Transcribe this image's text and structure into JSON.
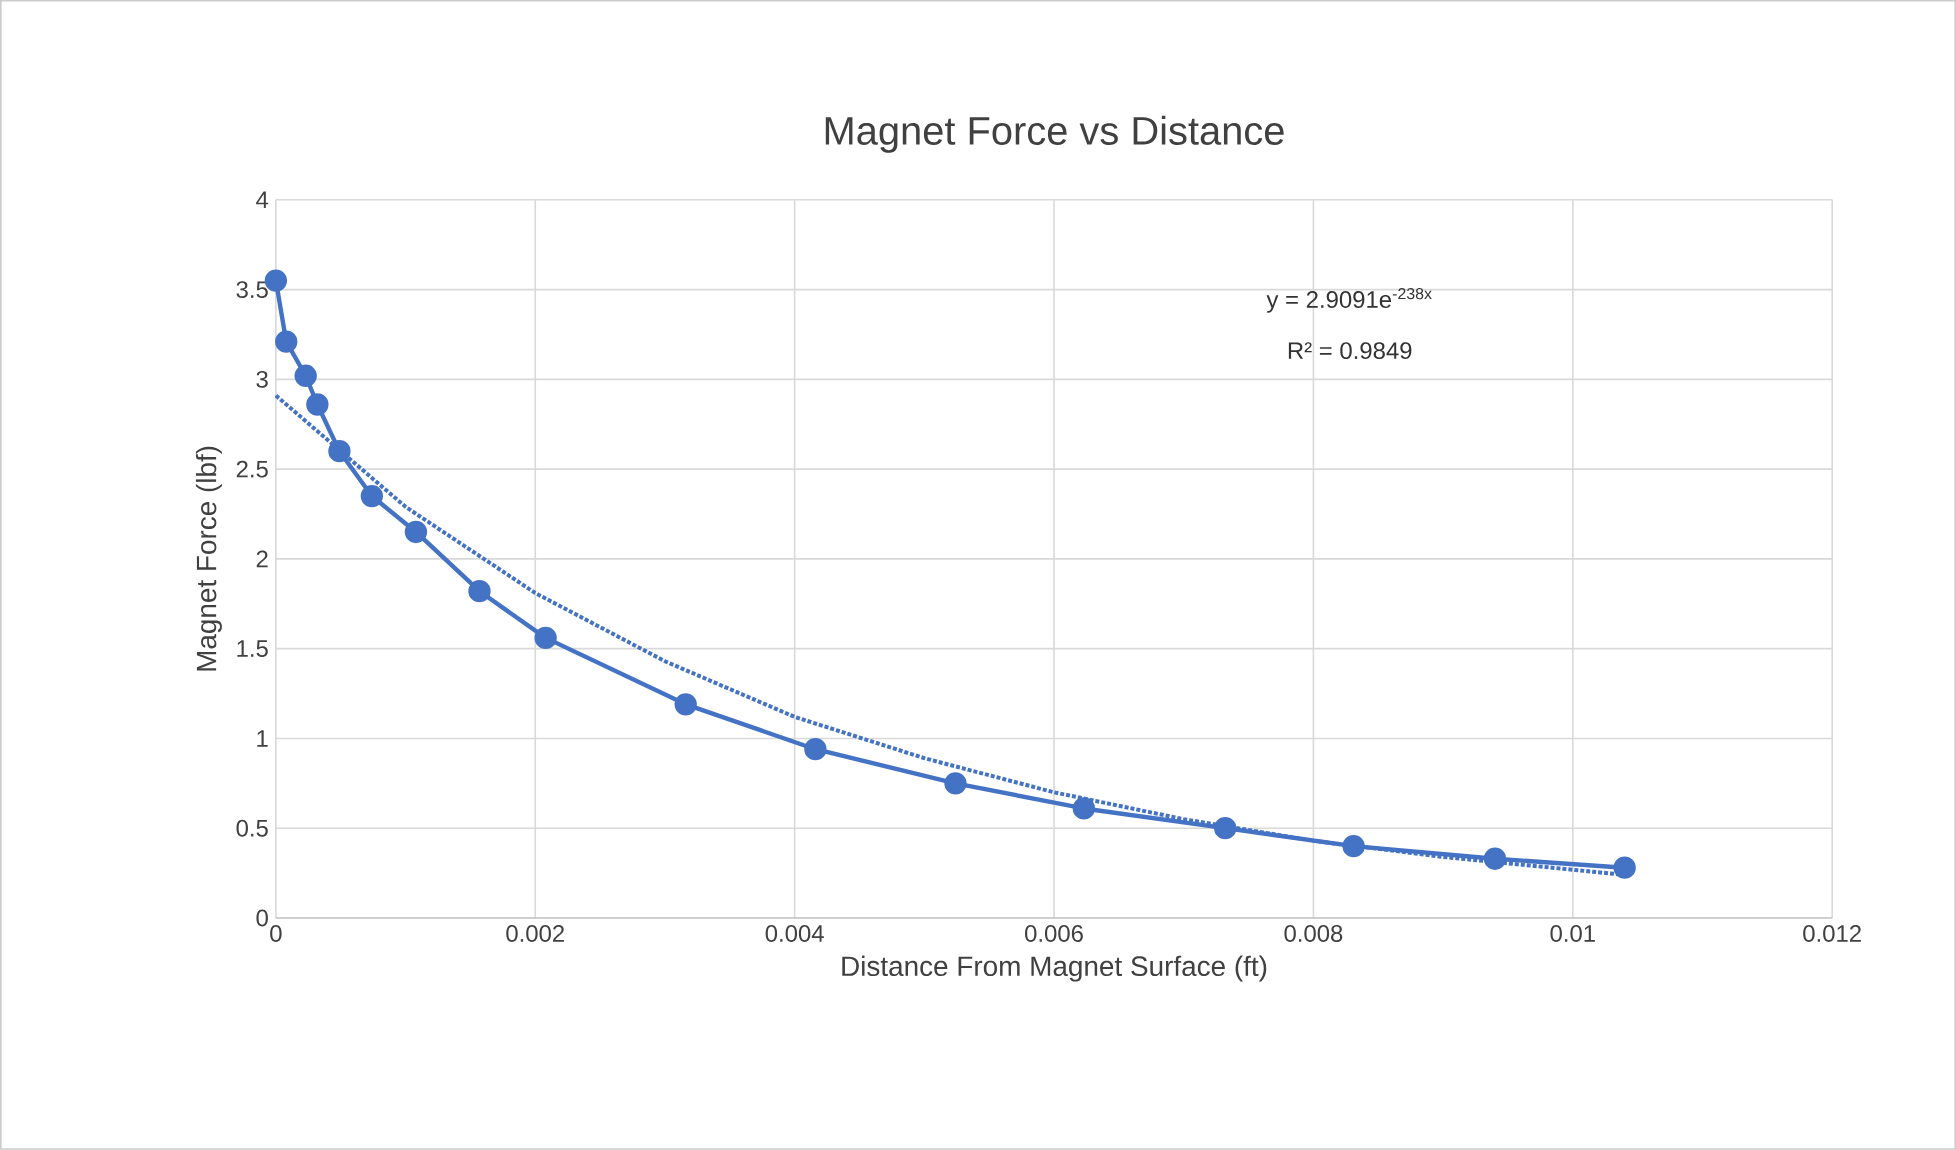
{
  "chart_data": {
    "type": "line",
    "title": "Magnet Force vs Distance",
    "xlabel": "Distance From Magnet Surface (ft)",
    "ylabel": "Magnet Force (lbf)",
    "series": [
      {
        "color": "#4472c4",
        "marker": "circle",
        "line_style": "solid",
        "x": [
          0,
          8e-05,
          0.00023,
          0.00032,
          0.00049,
          0.00074,
          0.00108,
          0.00157,
          0.00208,
          0.00316,
          0.00416,
          0.00524,
          0.00623,
          0.00732,
          0.00831,
          0.0094,
          0.0104
        ],
        "values": [
          3.55,
          3.21,
          3.02,
          2.86,
          2.6,
          2.35,
          2.15,
          1.82,
          1.56,
          1.19,
          0.94,
          0.75,
          0.61,
          0.5,
          0.4,
          0.33,
          0.28
        ]
      },
      {
        "type": "line",
        "color": "#4472c4",
        "marker": "none",
        "line_style": "dotted",
        "x": [
          0,
          0.001,
          0.002,
          0.003,
          0.004,
          0.005,
          0.006,
          0.007,
          0.008,
          0.009,
          0.0104
        ],
        "values": [
          2.91,
          2.29,
          1.81,
          1.43,
          1.12,
          0.89,
          0.7,
          0.55,
          0.43,
          0.34,
          0.24
        ]
      }
    ],
    "annotations": [
      "y = 2.9091e$^{-238x}$",
      "R² = 0.9849"
    ],
    "xlim": [
      0,
      0.012
    ],
    "xticks": [
      0,
      0.002,
      0.004,
      0.006,
      0.008,
      0.01,
      0.012
    ],
    "ylim": [
      0,
      4
    ],
    "yticks": [
      0,
      0.5,
      1,
      1.5,
      2,
      2.5,
      3,
      3.5,
      4
    ],
    "grid": true
  }
}
